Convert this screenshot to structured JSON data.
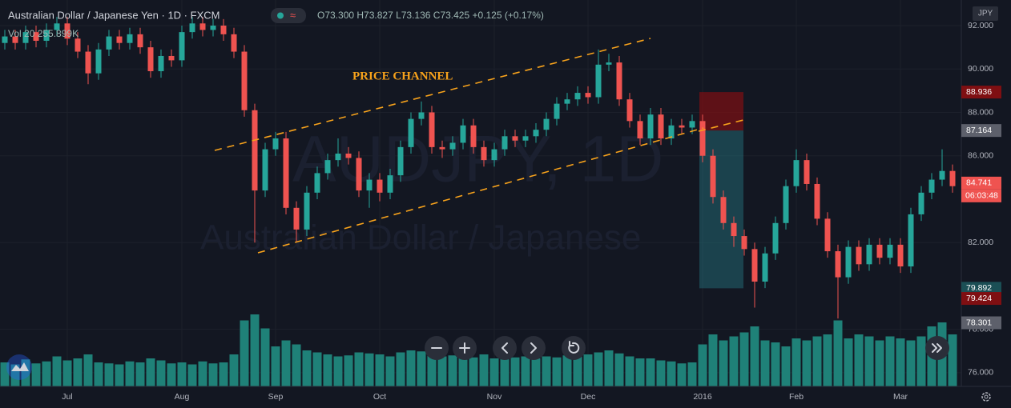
{
  "chart_data": {
    "type": "candlestick",
    "title": "Australian Dollar / Japanese Yen · 1D · FXCM",
    "ohlc_text": "O73.300 H73.827 L73.136 C73.425 +0.125 (+0.17%)",
    "volume_text": "Vol 20 255.899K",
    "watermark": "AUDJPY, 1D",
    "watermark_subtitle": "Australian Dollar / Japanese",
    "annotation": "PRICE CHANNEL",
    "currency": "JPY",
    "countdown": "06:03:48",
    "up_color": "#26a69a",
    "down_color": "#ef5350",
    "volume_color": "#1f8178",
    "grid": true,
    "open": [
      91.2,
      91.5,
      91.2,
      91.7,
      91.3,
      91.8,
      92.1,
      91.4,
      90.8,
      89.8,
      90.9,
      91.5,
      91.2,
      91.6,
      91.0,
      89.9,
      90.6,
      90.4,
      91.7,
      92.1,
      91.8,
      92.0,
      91.6,
      90.8,
      88.1,
      84.4,
      86.3,
      86.8,
      83.6,
      82.6,
      84.3,
      85.2,
      85.8,
      86.1,
      85.9,
      84.4,
      84.9,
      84.3,
      85.1,
      86.4,
      87.7,
      88.0,
      86.4,
      86.3,
      86.6,
      87.4,
      86.4,
      85.8,
      86.3,
      86.9,
      86.7,
      86.9,
      87.2,
      87.7,
      88.4,
      88.6,
      88.9,
      88.7,
      90.2,
      90.3,
      88.6,
      87.6,
      86.8,
      87.9,
      86.8,
      87.4,
      87.3,
      87.6,
      86.0,
      84.1,
      82.9,
      82.3,
      81.7,
      80.2,
      81.5,
      82.9,
      84.6,
      85.8,
      84.7,
      83.1,
      81.6,
      80.4,
      81.8,
      81.0,
      81.9,
      81.3,
      81.9,
      80.9,
      83.3,
      84.3,
      84.9,
      85.3
    ],
    "high": [
      91.8,
      91.8,
      92.0,
      92.0,
      92.1,
      92.4,
      92.4,
      91.7,
      91.1,
      91.2,
      91.8,
      91.8,
      91.9,
      91.9,
      91.3,
      90.9,
      90.9,
      92.0,
      92.4,
      92.4,
      92.3,
      92.3,
      91.9,
      91.1,
      88.4,
      86.6,
      87.1,
      87.1,
      83.9,
      84.6,
      85.5,
      86.1,
      86.8,
      86.4,
      86.2,
      85.2,
      85.2,
      85.4,
      86.7,
      88.0,
      88.5,
      88.3,
      86.7,
      86.9,
      87.7,
      87.7,
      86.7,
      86.6,
      87.2,
      87.2,
      87.2,
      87.5,
      88.0,
      88.7,
      88.9,
      89.2,
      89.2,
      90.9,
      90.7,
      90.6,
      88.9,
      87.9,
      88.2,
      88.2,
      87.7,
      87.7,
      87.9,
      87.9,
      86.3,
      84.4,
      83.2,
      82.6,
      82.0,
      81.8,
      83.2,
      84.9,
      86.3,
      86.1,
      85.0,
      83.4,
      81.9,
      82.1,
      82.1,
      82.2,
      82.2,
      82.2,
      82.2,
      83.6,
      84.6,
      85.2,
      86.3,
      85.6
    ],
    "low": [
      90.9,
      90.9,
      90.9,
      91.0,
      91.0,
      91.5,
      91.1,
      90.5,
      89.3,
      89.5,
      90.6,
      90.9,
      90.9,
      90.7,
      89.6,
      89.6,
      90.1,
      90.1,
      91.4,
      91.5,
      91.5,
      91.3,
      90.5,
      87.8,
      82.0,
      84.1,
      86.0,
      83.3,
      82.0,
      82.3,
      84.0,
      84.9,
      85.5,
      85.6,
      84.1,
      83.6,
      83.9,
      84.0,
      84.8,
      86.1,
      87.4,
      86.1,
      85.9,
      86.0,
      86.3,
      86.1,
      85.5,
      85.5,
      86.0,
      86.4,
      86.4,
      86.6,
      86.9,
      87.4,
      88.1,
      88.3,
      88.4,
      88.4,
      89.9,
      88.3,
      87.3,
      86.5,
      86.5,
      86.5,
      86.5,
      87.0,
      87.0,
      85.7,
      83.8,
      82.6,
      81.8,
      81.4,
      79.0,
      79.9,
      81.2,
      82.6,
      84.3,
      84.4,
      82.8,
      81.3,
      78.5,
      80.1,
      80.7,
      80.7,
      81.0,
      81.0,
      80.6,
      80.6,
      83.0,
      84.0,
      84.6,
      84.3
    ],
    "close": [
      91.5,
      91.2,
      91.7,
      91.3,
      91.8,
      92.1,
      91.4,
      90.8,
      89.8,
      90.9,
      91.5,
      91.2,
      91.6,
      91.0,
      89.9,
      90.6,
      90.4,
      91.7,
      92.1,
      91.8,
      92.0,
      91.6,
      90.8,
      88.1,
      84.4,
      86.3,
      86.8,
      83.6,
      82.6,
      84.3,
      85.2,
      85.8,
      86.1,
      85.9,
      84.4,
      84.9,
      84.3,
      85.1,
      86.4,
      87.7,
      88.0,
      86.4,
      86.3,
      86.6,
      87.4,
      86.4,
      85.8,
      86.3,
      86.9,
      86.7,
      86.9,
      87.2,
      87.7,
      88.4,
      88.6,
      88.9,
      88.7,
      90.2,
      90.3,
      88.6,
      87.6,
      86.8,
      87.9,
      86.8,
      87.4,
      87.3,
      87.6,
      86.0,
      84.1,
      82.9,
      82.3,
      81.7,
      80.2,
      81.5,
      82.9,
      84.6,
      85.8,
      84.7,
      83.1,
      81.6,
      80.4,
      81.8,
      81.0,
      81.9,
      81.3,
      81.9,
      80.9,
      83.3,
      84.3,
      84.9,
      85.3,
      84.6
    ],
    "volume": [
      120,
      110,
      135,
      115,
      125,
      150,
      130,
      140,
      160,
      120,
      115,
      110,
      125,
      120,
      140,
      130,
      115,
      120,
      110,
      125,
      115,
      120,
      160,
      330,
      360,
      290,
      200,
      230,
      210,
      180,
      170,
      160,
      150,
      155,
      170,
      165,
      160,
      150,
      170,
      180,
      175,
      160,
      150,
      155,
      150,
      145,
      160,
      140,
      150,
      145,
      150,
      140,
      150,
      145,
      155,
      150,
      160,
      170,
      180,
      165,
      150,
      140,
      140,
      130,
      125,
      115,
      120,
      210,
      260,
      230,
      250,
      270,
      300,
      230,
      220,
      200,
      240,
      230,
      250,
      260,
      330,
      240,
      260,
      250,
      230,
      250,
      240,
      230,
      250,
      300,
      320,
      260
    ],
    "volume_lim": [
      0,
      400
    ],
    "ylim": [
      75.37,
      93.18
    ],
    "yticks": [
      {
        "value": 92,
        "label": "92.000"
      },
      {
        "value": 90,
        "label": "90.000"
      },
      {
        "value": 88,
        "label": "88.000"
      },
      {
        "value": 86,
        "label": "86.000"
      },
      {
        "value": 82,
        "label": "82.000"
      },
      {
        "value": 78,
        "label": "78.000"
      },
      {
        "value": 76,
        "label": "76.000"
      }
    ],
    "xticks": [
      {
        "value": 6,
        "label": "Jul"
      },
      {
        "value": 17,
        "label": "Aug"
      },
      {
        "value": 26,
        "label": "Sep"
      },
      {
        "value": 36,
        "label": "Oct"
      },
      {
        "value": 47,
        "label": "Nov"
      },
      {
        "value": 56,
        "label": "Dec"
      },
      {
        "value": 67,
        "label": "2016"
      },
      {
        "value": 76,
        "label": "Feb"
      },
      {
        "value": 86,
        "label": "Mar"
      }
    ],
    "price_markers": [
      {
        "value": 88.936,
        "color": "#7f0f12"
      },
      {
        "value": 87.164,
        "color": "#5d606b"
      },
      {
        "value": 84.741,
        "color": "#ef5350"
      },
      {
        "value": 79.892,
        "color": "#1b4f55"
      },
      {
        "value": 79.424,
        "color": "#7f0f12"
      },
      {
        "value": 78.301,
        "color": "#5d606b"
      }
    ]
  }
}
